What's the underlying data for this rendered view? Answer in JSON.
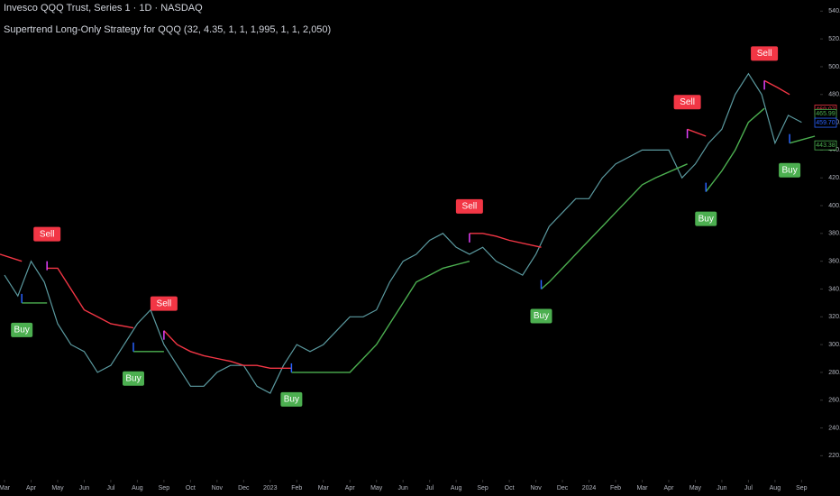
{
  "chart_data": {
    "type": "line",
    "title": "Invesco QQQ Trust, Series 1 · 1D · NASDAQ",
    "subtitle": "Supertrend Long-Only Strategy for QQQ (32, 4.35, 1, 1, 1,995, 1, 1, 2,050)",
    "xlim": [
      -0.17,
      30.7
    ],
    "ylim": [
      204,
      548
    ],
    "xticks": [
      {
        "value": 0,
        "label": "Mar"
      },
      {
        "value": 1,
        "label": "Apr"
      },
      {
        "value": 2,
        "label": "May"
      },
      {
        "value": 3,
        "label": "Jun"
      },
      {
        "value": 4,
        "label": "Jul"
      },
      {
        "value": 5,
        "label": "Aug"
      },
      {
        "value": 6,
        "label": "Sep"
      },
      {
        "value": 7,
        "label": "Oct"
      },
      {
        "value": 8,
        "label": "Nov"
      },
      {
        "value": 9,
        "label": "Dec"
      },
      {
        "value": 10,
        "label": "2023"
      },
      {
        "value": 11,
        "label": "Feb"
      },
      {
        "value": 12,
        "label": "Mar"
      },
      {
        "value": 13,
        "label": "Apr"
      },
      {
        "value": 14,
        "label": "May"
      },
      {
        "value": 15,
        "label": "Jun"
      },
      {
        "value": 16,
        "label": "Jul"
      },
      {
        "value": 17,
        "label": "Aug"
      },
      {
        "value": 18,
        "label": "Sep"
      },
      {
        "value": 19,
        "label": "Oct"
      },
      {
        "value": 20,
        "label": "Nov"
      },
      {
        "value": 21,
        "label": "Dec"
      },
      {
        "value": 22,
        "label": "2024"
      },
      {
        "value": 23,
        "label": "Feb"
      },
      {
        "value": 24,
        "label": "Mar"
      },
      {
        "value": 25,
        "label": "Apr"
      },
      {
        "value": 26,
        "label": "May"
      },
      {
        "value": 27,
        "label": "Jun"
      },
      {
        "value": 28,
        "label": "Jul"
      },
      {
        "value": 29,
        "label": "Aug"
      },
      {
        "value": 30,
        "label": "Sep"
      }
    ],
    "yticks": [
      {
        "value": 220,
        "label": "220.00"
      },
      {
        "value": 240,
        "label": "240.00"
      },
      {
        "value": 260,
        "label": "260.00"
      },
      {
        "value": 280,
        "label": "280.00"
      },
      {
        "value": 300,
        "label": "300.00"
      },
      {
        "value": 320,
        "label": "320.00"
      },
      {
        "value": 340,
        "label": "340.00"
      },
      {
        "value": 360,
        "label": "360.00"
      },
      {
        "value": 380,
        "label": "380.00"
      },
      {
        "value": 400,
        "label": "400.00"
      },
      {
        "value": 420,
        "label": "420.00"
      },
      {
        "value": 440,
        "label": "440.00"
      },
      {
        "value": 460,
        "label": "460.00"
      },
      {
        "value": 480,
        "label": "480.00"
      },
      {
        "value": 500,
        "label": "500.00"
      },
      {
        "value": 520,
        "label": "520.00"
      },
      {
        "value": 540,
        "label": "540.00"
      }
    ],
    "series": [
      {
        "color": "#5b9aa0",
        "x": [
          0,
          0.5,
          1,
          1.5,
          2,
          2.5,
          3,
          3.5,
          4,
          4.5,
          5,
          5.5,
          6,
          6.5,
          7,
          7.5,
          8,
          8.5,
          9,
          9.5,
          10,
          10.5,
          11,
          11.5,
          12,
          12.5,
          13,
          13.5,
          14,
          14.5,
          15,
          15.5,
          16,
          16.5,
          17,
          17.5,
          18,
          18.5,
          19,
          19.5,
          20,
          20.5,
          21,
          21.5,
          22,
          22.5,
          23,
          23.5,
          24,
          24.5,
          25,
          25.5,
          26,
          26.5,
          27,
          27.5,
          28,
          28.5,
          29,
          29.5,
          30
        ],
        "values": [
          350,
          335,
          360,
          345,
          315,
          300,
          295,
          280,
          285,
          300,
          315,
          325,
          300,
          285,
          270,
          270,
          280,
          285,
          285,
          270,
          265,
          285,
          300,
          295,
          300,
          310,
          320,
          320,
          325,
          345,
          360,
          365,
          375,
          380,
          370,
          365,
          370,
          360,
          355,
          350,
          365,
          385,
          395,
          405,
          405,
          420,
          430,
          435,
          440,
          440,
          440,
          420,
          430,
          445,
          455,
          480,
          495,
          480,
          445,
          465,
          460
        ]
      },
      {
        "color": "#4caf50",
        "x": [
          0.65,
          1.6,
          4.85,
          4.85,
          6.0,
          10.8,
          10.8,
          13,
          13.5,
          14,
          14.5,
          15,
          15.5,
          16,
          16.5,
          17.5,
          20.2,
          20.2,
          20.5,
          21,
          21.5,
          22,
          22.5,
          23,
          23.5,
          24,
          24.5,
          25.7,
          26.4,
          26.4,
          27,
          27.5,
          28,
          28.6,
          29.55,
          29.55,
          30.5
        ],
        "values": [
          330,
          330,
          null,
          295,
          295,
          null,
          280,
          280,
          290,
          300,
          315,
          330,
          345,
          350,
          355,
          360,
          null,
          340,
          345,
          355,
          365,
          375,
          385,
          395,
          405,
          415,
          420,
          430,
          null,
          410,
          425,
          440,
          460,
          470,
          null,
          445,
          450
        ]
      },
      {
        "color": "#f23645",
        "x": [
          -0.17,
          0.65,
          1.6,
          1.6,
          2,
          2.5,
          3,
          3.5,
          4,
          4.85,
          6,
          6,
          6.5,
          7,
          7.5,
          8,
          8.5,
          9,
          9.5,
          10,
          10.8,
          17.5,
          17.5,
          18,
          18.5,
          19,
          20.2,
          25.7,
          25.7,
          26.4,
          28.6,
          28.6,
          29.1,
          29.55
        ],
        "values": [
          365,
          360,
          null,
          355,
          355,
          340,
          325,
          320,
          315,
          312,
          null,
          310,
          300,
          295,
          292,
          290,
          288,
          285,
          285,
          283,
          283,
          null,
          380,
          380,
          378,
          375,
          370,
          null,
          455,
          450,
          null,
          490,
          485,
          480
        ]
      }
    ],
    "signals": [
      {
        "text": "Buy",
        "x": 0.65,
        "price": 330
      },
      {
        "text": "Sell",
        "x": 1.6,
        "price": 360
      },
      {
        "text": "Buy",
        "x": 4.85,
        "price": 295
      },
      {
        "text": "Sell",
        "x": 6.0,
        "price": 310
      },
      {
        "text": "Buy",
        "x": 10.8,
        "price": 280
      },
      {
        "text": "Sell",
        "x": 17.5,
        "price": 380
      },
      {
        "text": "Buy",
        "x": 20.2,
        "price": 340
      },
      {
        "text": "Sell",
        "x": 25.7,
        "price": 455
      },
      {
        "text": "Buy",
        "x": 26.4,
        "price": 410
      },
      {
        "text": "Sell",
        "x": 28.6,
        "price": 490
      },
      {
        "text": "Buy",
        "x": 29.55,
        "price": 445
      }
    ],
    "buy_color": "#4caf50",
    "sell_color": "#f23645",
    "price_labels": [
      {
        "value": 469.07,
        "color": "#f23645"
      },
      {
        "value": 465.99,
        "color": "#4caf50"
      },
      {
        "value": 459.7,
        "label": "459.70",
        "color": "#2962ff"
      },
      {
        "value": 443.38,
        "color": "#4caf50"
      }
    ]
  }
}
